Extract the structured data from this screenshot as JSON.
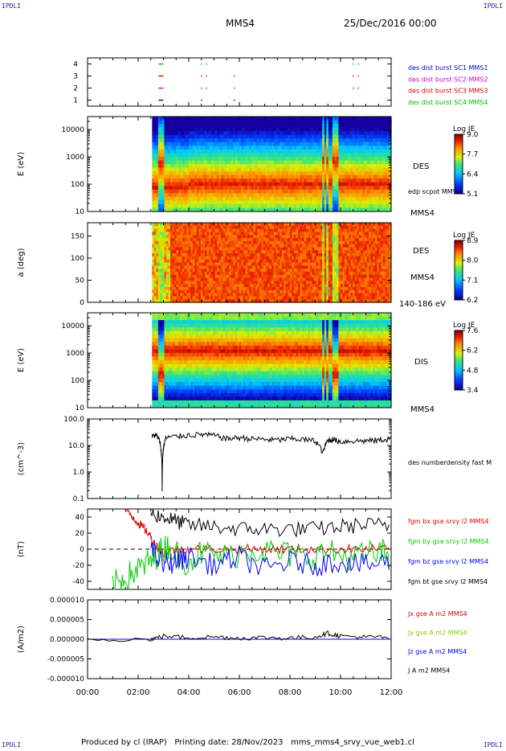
{
  "header": {
    "mission": "MMS4",
    "date": "25/Dec/2016 00:00",
    "corner_tl": "IPDLI",
    "corner_tr": "IPDLI",
    "corner_bl": "IPDLI",
    "corner_br": "IPDLI"
  },
  "footer": {
    "produced_by": "Produced by cl (IRAP)",
    "printing_date": "Printing date: 28/Nov/2023",
    "filename": "mms_mms4_srvy_vue_web1.cl"
  },
  "colors": {
    "mms1": "#0000cc",
    "mms2": "#cc00cc",
    "mms3": "#dd0000",
    "mms4": "#00bb00",
    "bx": "#dd0000",
    "by": "#00cc00",
    "bz": "#0000ff",
    "bt": "#000000",
    "jy": "#88cc00"
  },
  "x_axis": {
    "ticks": [
      "00:00",
      "02:00",
      "04:00",
      "06:00",
      "08:00",
      "10:00",
      "12:00"
    ],
    "range_hours": [
      0,
      12
    ]
  },
  "chart_data": [
    {
      "type": "scatter",
      "panel": "burst",
      "ylim": [
        0.5,
        4.5
      ],
      "yticks": [
        "1",
        "2",
        "3",
        "4"
      ],
      "legend": [
        {
          "text": "des dist burst SC1 MMS1",
          "color": "#0000cc"
        },
        {
          "text": "des dist burst SC2 MMS2",
          "color": "#cc00cc"
        },
        {
          "text": "des dist burst SC3 MMS3",
          "color": "#dd0000"
        },
        {
          "text": "des dist burst SC4 MMS4",
          "color": "#00bb00"
        }
      ],
      "marks": [
        {
          "sc": 4,
          "t": [
            2.9,
            4.5,
            4.7,
            10.5,
            10.7,
            11.9
          ]
        },
        {
          "sc": 3,
          "t": [
            2.9,
            4.5,
            4.7,
            5.8,
            10.5,
            10.7,
            11.9
          ]
        },
        {
          "sc": 2,
          "t": [
            2.9,
            4.5,
            4.7,
            5.8,
            10.5,
            10.7
          ]
        },
        {
          "sc": 1,
          "t": [
            2.9,
            4.5,
            5.8
          ]
        }
      ]
    },
    {
      "type": "heatmap",
      "panel": "des_energy",
      "ylabel": "E (eV)",
      "yscale": "log",
      "ylim": [
        10,
        30000
      ],
      "yticks": [
        "10",
        "100",
        "1000",
        "10000"
      ],
      "label": "DES",
      "overlay_label": "edp scpot MMS4",
      "bottom_label": "MMS4",
      "colorbar": {
        "title": "Log JE",
        "ticks": [
          "9.0",
          "7.7",
          "6.4",
          "5.1"
        ],
        "range": [
          5.1,
          9.0
        ]
      },
      "data_start_hours": 2.55,
      "data_end_hours": 12.0
    },
    {
      "type": "heatmap",
      "panel": "des_pitch",
      "ylabel": "a (deg)",
      "ylim": [
        0,
        180
      ],
      "yticks": [
        "0",
        "50",
        "100",
        "150"
      ],
      "label": "DES",
      "sub_label": "MMS4",
      "bottom_label": "140-186 eV",
      "colorbar": {
        "title": "Log JE",
        "ticks": [
          "8.9",
          "8.0",
          "7.1",
          "6.2"
        ],
        "range": [
          6.2,
          8.9
        ]
      },
      "data_start_hours": 2.55,
      "data_end_hours": 12.0
    },
    {
      "type": "heatmap",
      "panel": "dis_energy",
      "ylabel": "E (eV)",
      "yscale": "log",
      "ylim": [
        10,
        30000
      ],
      "yticks": [
        "10",
        "100",
        "1000",
        "10000"
      ],
      "label": "DIS",
      "bottom_label": "MMS4",
      "colorbar": {
        "title": "Log JE",
        "ticks": [
          "7.6",
          "6.2",
          "4.8",
          "3.4"
        ],
        "range": [
          3.4,
          7.6
        ]
      },
      "data_start_hours": 2.55,
      "data_end_hours": 12.0
    },
    {
      "type": "line",
      "panel": "density",
      "ylabel": "(cm^-3)",
      "yscale": "log",
      "ylim": [
        0.1,
        100
      ],
      "yticks": [
        "0.1",
        "1.0",
        "10.0",
        "100.0"
      ],
      "series": [
        {
          "name": "des numberdensity fast M",
          "color": "#000000",
          "x": [
            2.55,
            2.7,
            2.85,
            2.95,
            3.0,
            3.1,
            3.5,
            4.0,
            4.5,
            5.0,
            5.5,
            6.0,
            6.5,
            7.0,
            7.5,
            8.0,
            8.5,
            9.0,
            9.3,
            9.5,
            9.7,
            10.0,
            10.5,
            11.0,
            11.5,
            12.0
          ],
          "y": [
            22,
            25,
            15,
            0.2,
            8,
            20,
            22,
            25,
            26,
            24,
            18,
            20,
            18,
            17,
            16,
            18,
            17,
            15,
            5,
            16,
            17,
            14,
            15,
            15,
            16,
            18
          ]
        }
      ]
    },
    {
      "type": "line",
      "panel": "fgm",
      "ylabel": "(nT)",
      "ylim": [
        -50,
        50
      ],
      "yticks": [
        "-40",
        "-20",
        "0",
        "20",
        "40"
      ],
      "series": [
        {
          "name": "fgm bx gse srvy l2 MMS4",
          "color": "#dd0000",
          "x": [
            1.5,
            1.8,
            2.1,
            2.4,
            2.7,
            3.0,
            3.5,
            4.0,
            5.0,
            6.0,
            7.0,
            8.0,
            9.0,
            10.0,
            11.0,
            12.0
          ],
          "y": [
            48,
            40,
            30,
            20,
            5,
            -5,
            0,
            0,
            0,
            0,
            0,
            0,
            0,
            0,
            0,
            0
          ]
        },
        {
          "name": "fgm by gse srvy l2 MMS4",
          "color": "#00cc00",
          "x": [
            1.0,
            1.5,
            2.0,
            2.5,
            2.8,
            3.2,
            3.8,
            4.5,
            5.5,
            6.5,
            7.5,
            8.5,
            9.5,
            10.5,
            11.5,
            12.0
          ],
          "y": [
            -45,
            -35,
            -25,
            -15,
            -5,
            5,
            -15,
            -5,
            -10,
            0,
            -5,
            -10,
            -5,
            -10,
            -5,
            -5
          ]
        },
        {
          "name": "fgm bz gse srvy l2 MMS4",
          "color": "#0000ff",
          "x": [
            2.5,
            3.0,
            3.5,
            4.0,
            5.0,
            6.0,
            7.0,
            8.0,
            9.0,
            10.0,
            11.0,
            12.0
          ],
          "y": [
            0,
            -20,
            -15,
            -10,
            -20,
            -10,
            -25,
            -15,
            -20,
            -15,
            -20,
            -15
          ]
        },
        {
          "name": "fgm bt gse srvy l2 MMS4",
          "color": "#000000",
          "x": [
            2.5,
            3.0,
            3.5,
            4.0,
            5.0,
            6.0,
            7.0,
            8.0,
            9.0,
            10.0,
            11.0,
            12.0
          ],
          "y": [
            45,
            40,
            35,
            30,
            28,
            25,
            25,
            25,
            25,
            28,
            30,
            30
          ]
        }
      ]
    },
    {
      "type": "line",
      "panel": "current",
      "ylabel": "(A/m2)",
      "ylim": [
        -1e-05,
        1e-05
      ],
      "yticks": [
        "-0.000010",
        "-0.000005",
        "0.000000",
        "0.000005",
        "0.000010"
      ],
      "series": [
        {
          "name": "Jx gse A m2 MMS4",
          "color": "#dd0000"
        },
        {
          "name": "Jy gse A m2 MMS4",
          "color": "#88cc00"
        },
        {
          "name": "Jz gse A m2 MMS4",
          "color": "#0000ff"
        },
        {
          "name": "J A m2 MMS4",
          "color": "#000000",
          "x": [
            0,
            2.5,
            3.0,
            4.0,
            5.0,
            6.0,
            7.0,
            8.0,
            9.0,
            9.5,
            10.0,
            11.0,
            12.0
          ],
          "y": [
            0,
            0,
            8e-07,
            4e-07,
            6e-07,
            3e-07,
            4e-07,
            3e-07,
            6e-07,
            1.5e-06,
            8e-07,
            5e-07,
            5e-07
          ]
        }
      ]
    }
  ]
}
